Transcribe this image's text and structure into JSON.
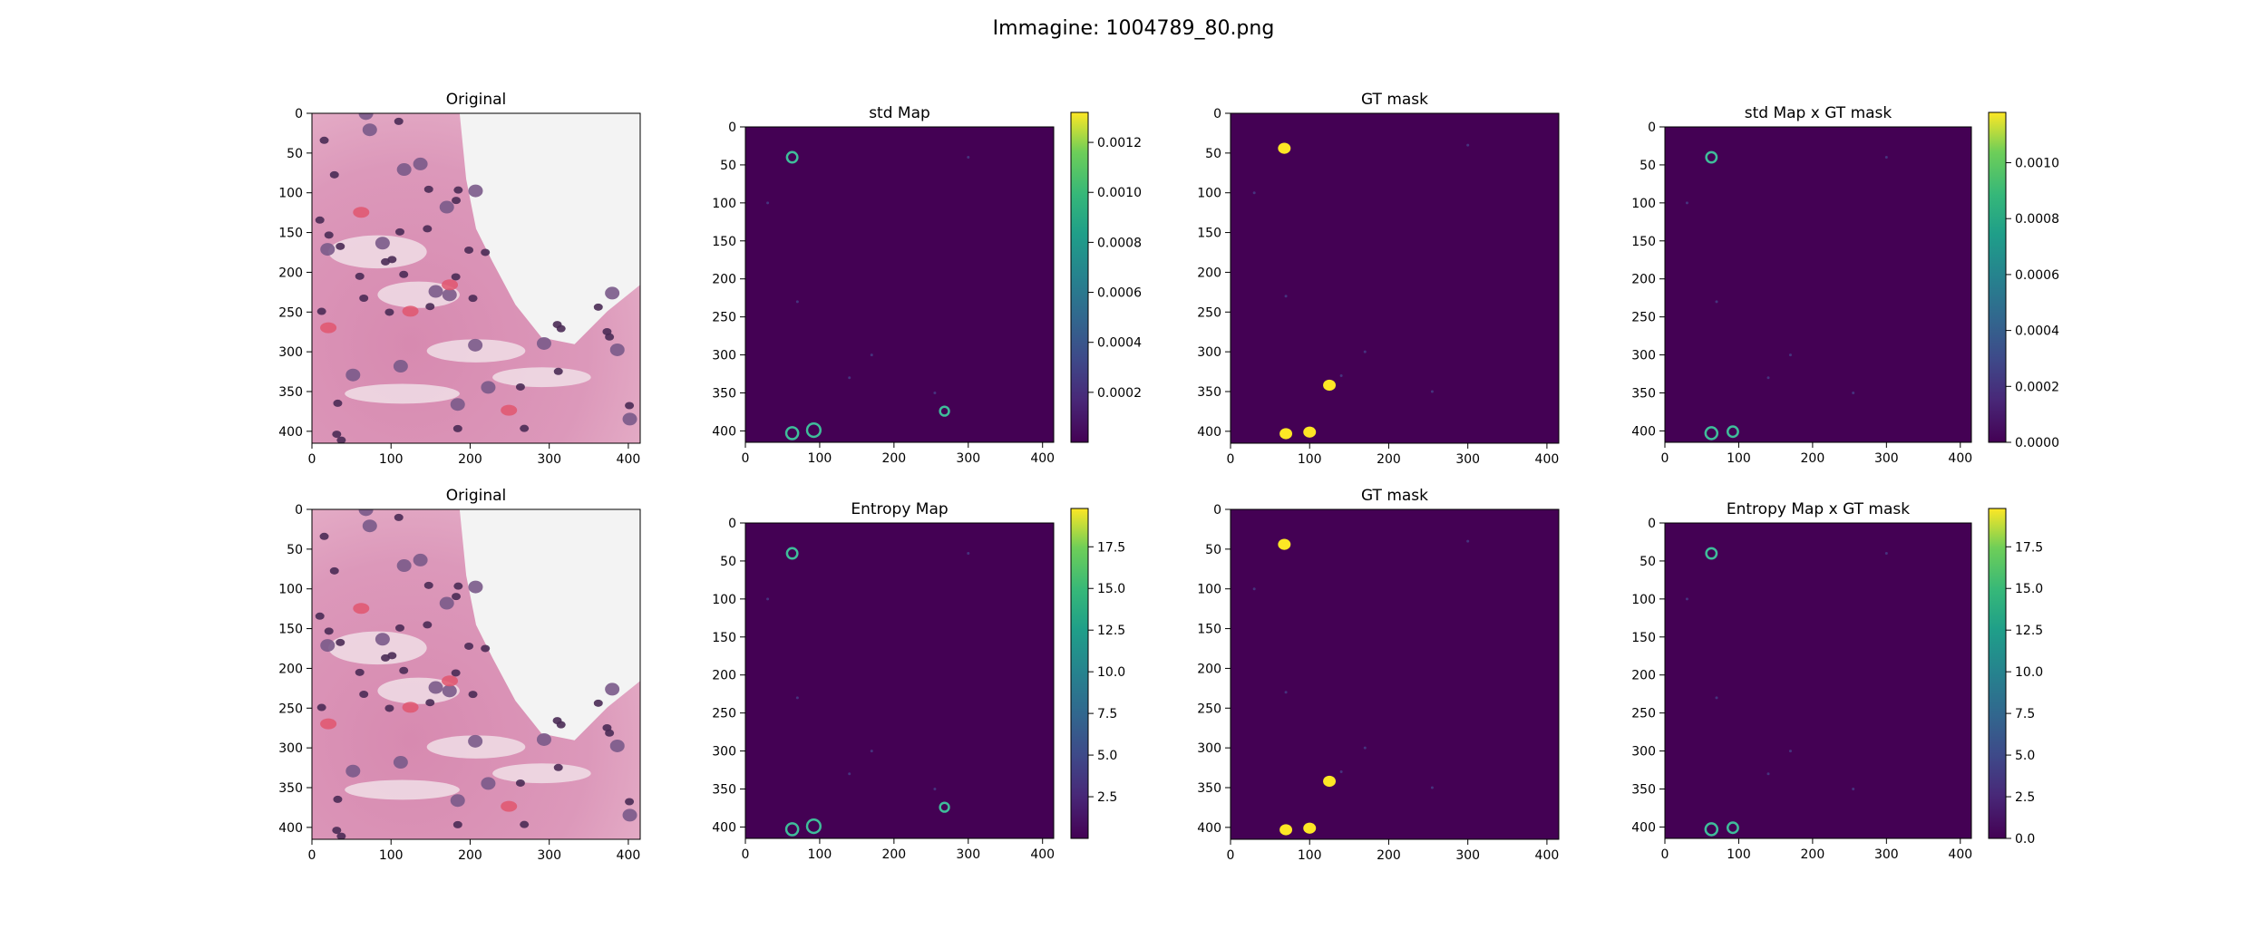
{
  "figure": {
    "suptitle": "Immagine: 1004789_80.png",
    "colors": {
      "viridis_low": "#440154",
      "viridis_mid": "#21918c",
      "viridis_high": "#fde725",
      "tissue_pink": "#d98fb3",
      "nucleus_purple": "#4a2b55"
    }
  },
  "chart_data": [
    {
      "type": "heatmap",
      "title": "Original",
      "image": "H&E tissue",
      "xlim": [
        0,
        415
      ],
      "ylim": [
        415,
        0
      ],
      "xticks": [
        0,
        100,
        200,
        300,
        400
      ],
      "yticks": [
        0,
        50,
        100,
        150,
        200,
        250,
        300,
        350,
        400
      ]
    },
    {
      "type": "heatmap",
      "title": "std Map",
      "xlim": [
        0,
        415
      ],
      "ylim": [
        415,
        0
      ],
      "xticks": [
        0,
        100,
        200,
        300,
        400
      ],
      "yticks": [
        0,
        50,
        100,
        150,
        200,
        250,
        300,
        350,
        400
      ],
      "colorbar": {
        "min": 0.0,
        "max": 0.00132,
        "ticks": [
          "0.0002",
          "0.0004",
          "0.0006",
          "0.0008",
          "0.0010",
          "0.0012"
        ],
        "tick_values": [
          0.0002,
          0.0004,
          0.0006,
          0.0008,
          0.001,
          0.0012
        ]
      },
      "rings": [
        {
          "x": 63,
          "y": 40,
          "r": 7
        },
        {
          "x": 63,
          "y": 403,
          "r": 8
        },
        {
          "x": 92,
          "y": 399,
          "r": 9
        },
        {
          "x": 268,
          "y": 374,
          "r": 6
        }
      ]
    },
    {
      "type": "heatmap",
      "title": "GT mask",
      "xlim": [
        0,
        415
      ],
      "ylim": [
        415,
        0
      ],
      "xticks": [
        0,
        100,
        200,
        300,
        400
      ],
      "yticks": [
        0,
        50,
        100,
        150,
        200,
        250,
        300,
        350,
        400
      ],
      "blobs": [
        {
          "x": 68,
          "y": 44
        },
        {
          "x": 125,
          "y": 342
        },
        {
          "x": 70,
          "y": 403
        },
        {
          "x": 100,
          "y": 401
        }
      ]
    },
    {
      "type": "heatmap",
      "title": "std Map x GT mask",
      "xlim": [
        0,
        415
      ],
      "ylim": [
        415,
        0
      ],
      "xticks": [
        0,
        100,
        200,
        300,
        400
      ],
      "yticks": [
        0,
        50,
        100,
        150,
        200,
        250,
        300,
        350,
        400
      ],
      "colorbar": {
        "min": 0.0,
        "max": 0.00118,
        "ticks": [
          "0.0000",
          "0.0002",
          "0.0004",
          "0.0006",
          "0.0008",
          "0.0010"
        ],
        "tick_values": [
          0.0,
          0.0002,
          0.0004,
          0.0006,
          0.0008,
          0.001
        ]
      },
      "rings": [
        {
          "x": 63,
          "y": 40,
          "r": 7
        },
        {
          "x": 63,
          "y": 403,
          "r": 8
        },
        {
          "x": 92,
          "y": 401,
          "r": 7
        }
      ]
    },
    {
      "type": "heatmap",
      "title": "Original",
      "image": "H&E tissue",
      "xlim": [
        0,
        415
      ],
      "ylim": [
        415,
        0
      ],
      "xticks": [
        0,
        100,
        200,
        300,
        400
      ],
      "yticks": [
        0,
        50,
        100,
        150,
        200,
        250,
        300,
        350,
        400
      ]
    },
    {
      "type": "heatmap",
      "title": "Entropy Map",
      "xlim": [
        0,
        415
      ],
      "ylim": [
        415,
        0
      ],
      "xticks": [
        0,
        100,
        200,
        300,
        400
      ],
      "yticks": [
        0,
        50,
        100,
        150,
        200,
        250,
        300,
        350,
        400
      ],
      "colorbar": {
        "min": 0.0,
        "max": 19.8,
        "ticks": [
          "2.5",
          "5.0",
          "7.5",
          "10.0",
          "12.5",
          "15.0",
          "17.5"
        ],
        "tick_values": [
          2.5,
          5.0,
          7.5,
          10.0,
          12.5,
          15.0,
          17.5
        ]
      },
      "rings": [
        {
          "x": 63,
          "y": 40,
          "r": 7
        },
        {
          "x": 63,
          "y": 403,
          "r": 8
        },
        {
          "x": 92,
          "y": 399,
          "r": 9
        },
        {
          "x": 268,
          "y": 374,
          "r": 6
        }
      ]
    },
    {
      "type": "heatmap",
      "title": "GT mask",
      "xlim": [
        0,
        415
      ],
      "ylim": [
        415,
        0
      ],
      "xticks": [
        0,
        100,
        200,
        300,
        400
      ],
      "yticks": [
        0,
        50,
        100,
        150,
        200,
        250,
        300,
        350,
        400
      ],
      "blobs": [
        {
          "x": 68,
          "y": 44
        },
        {
          "x": 125,
          "y": 342
        },
        {
          "x": 70,
          "y": 403
        },
        {
          "x": 100,
          "y": 401
        }
      ]
    },
    {
      "type": "heatmap",
      "title": "Entropy Map x GT mask",
      "xlim": [
        0,
        415
      ],
      "ylim": [
        415,
        0
      ],
      "xticks": [
        0,
        100,
        200,
        300,
        400
      ],
      "yticks": [
        0,
        50,
        100,
        150,
        200,
        250,
        300,
        350,
        400
      ],
      "colorbar": {
        "min": 0.0,
        "max": 19.8,
        "ticks": [
          "0.0",
          "2.5",
          "5.0",
          "7.5",
          "10.0",
          "12.5",
          "15.0",
          "17.5"
        ],
        "tick_values": [
          0.0,
          2.5,
          5.0,
          7.5,
          10.0,
          12.5,
          15.0,
          17.5
        ]
      },
      "rings": [
        {
          "x": 63,
          "y": 40,
          "r": 7
        },
        {
          "x": 63,
          "y": 403,
          "r": 8
        },
        {
          "x": 92,
          "y": 401,
          "r": 7
        }
      ]
    }
  ]
}
